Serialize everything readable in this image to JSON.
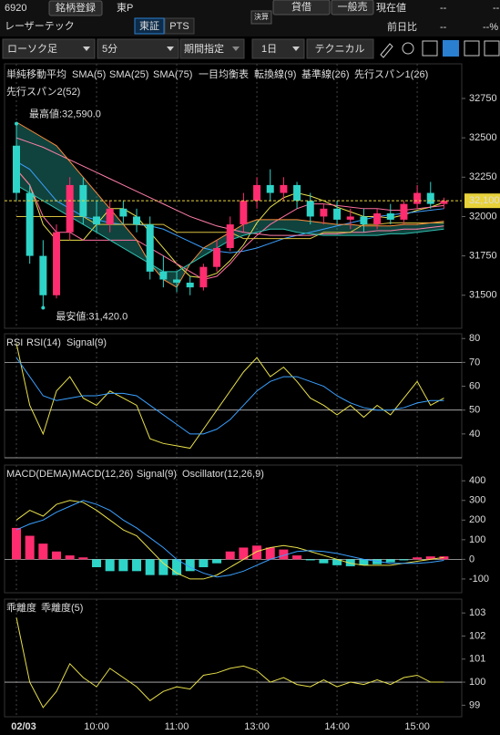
{
  "header": {
    "code": "6920",
    "register": "銘柄登録",
    "market": "東P",
    "lend": "貸借",
    "general_sell": "一般売",
    "price_label": "現在値",
    "price": "--",
    "price_extra": "--",
    "name": "レーザーテック",
    "exchange": "東証",
    "pts": "PTS",
    "earnings": "決算",
    "change_label": "前日比",
    "change": "--",
    "change_pct": "--%"
  },
  "toolbar": {
    "chart_kind": "ローソク足",
    "interval": "5分",
    "period": "期間指定",
    "span": "1日",
    "technical": "テクニカル"
  },
  "chart_data": [
    {
      "type": "candlestick",
      "groups": [
        "単純移動平均",
        "一目均衡表"
      ],
      "open": [
        32450,
        32150,
        31750,
        31500,
        31900,
        32200,
        32000,
        31950,
        32050,
        32000,
        31950,
        31650,
        31600,
        31580,
        31550,
        31680,
        31800,
        31950,
        32100,
        32200,
        32150,
        32200,
        32100,
        32000,
        32050,
        31980,
        32000,
        31950,
        32020,
        31980,
        32080,
        32150,
        32080
      ],
      "high": [
        32590,
        32200,
        31850,
        31950,
        32250,
        32250,
        32100,
        32100,
        32100,
        32050,
        32000,
        31750,
        31650,
        31620,
        31700,
        31850,
        32000,
        32150,
        32250,
        32300,
        32250,
        32220,
        32150,
        32080,
        32100,
        32050,
        32050,
        32050,
        32080,
        32100,
        32200,
        32220,
        32120
      ],
      "low": [
        32100,
        31700,
        31420,
        31480,
        31850,
        31950,
        31900,
        31900,
        31950,
        31900,
        31600,
        31550,
        31520,
        31500,
        31530,
        31650,
        31780,
        31900,
        32050,
        32100,
        32100,
        32050,
        31950,
        31950,
        31950,
        31920,
        31900,
        31920,
        31950,
        31950,
        32050,
        32050,
        32050
      ],
      "close": [
        32150,
        31750,
        31500,
        31900,
        32200,
        32000,
        31950,
        32050,
        32000,
        31950,
        31650,
        31600,
        31580,
        31550,
        31680,
        31800,
        31950,
        32100,
        32200,
        32150,
        32200,
        32100,
        32000,
        32050,
        31980,
        32000,
        31950,
        32020,
        31980,
        32080,
        32150,
        32080,
        32100
      ],
      "up_color": "#ff2d6f",
      "down_color": "#2fd4c8",
      "series": [
        {
          "name": "SMA(5)",
          "color": "#e8e04a",
          "values": [
            32300,
            32200,
            31950,
            31850,
            31850,
            31850,
            31950,
            32050,
            32050,
            32000,
            31900,
            31800,
            31700,
            31620,
            31610,
            31640,
            31720,
            31820,
            31960,
            32060,
            32120,
            32150,
            32130,
            32100,
            32060,
            32030,
            32000,
            32000,
            31990,
            32010,
            32040,
            32060,
            32090
          ]
        },
        {
          "name": "SMA(25)",
          "color": "#3aa0ff",
          "values": [
            32350,
            32300,
            32200,
            32100,
            32050,
            32000,
            31980,
            31960,
            31950,
            31950,
            31940,
            31920,
            31880,
            31840,
            31800,
            31780,
            31770,
            31780,
            31800,
            31830,
            31860,
            31880,
            31900,
            31920,
            31940,
            31960,
            31980,
            32000,
            32010,
            32020,
            32030,
            32040,
            32050
          ]
        },
        {
          "name": "SMA(75)",
          "color": "#ff7fa8",
          "values": [
            32500,
            32470,
            32440,
            32400,
            32360,
            32320,
            32280,
            32240,
            32200,
            32160,
            32120,
            32080,
            32040,
            32000,
            31970,
            31940,
            31920,
            31900,
            31890,
            31880,
            31880,
            31880,
            31880,
            31890,
            31890,
            31900,
            31900,
            31910,
            31910,
            31920,
            31920,
            31930,
            31940
          ]
        },
        {
          "name": "転換線(9)",
          "color": "#ff6fa0",
          "values": [
            32300,
            32200,
            32000,
            31900,
            31900,
            31850,
            31850,
            31850,
            31850,
            31850,
            31800,
            31750,
            31700,
            31650,
            31600,
            31620,
            31700,
            31800,
            31880,
            31950,
            32000,
            32050,
            32080,
            32080,
            32070,
            32060,
            32050,
            32050,
            32040,
            32040,
            32050,
            32060,
            32070
          ]
        },
        {
          "name": "基準線(26)",
          "color": "#d8c040",
          "values": [
            32000,
            32000,
            32000,
            32000,
            32000,
            32000,
            31950,
            31950,
            31950,
            31950,
            31950,
            31950,
            31900,
            31900,
            31900,
            31900,
            31900,
            31860,
            31860,
            31860,
            31860,
            31860,
            31860,
            31900,
            31900,
            31900,
            31950,
            31950,
            31960,
            31960,
            31960,
            31960,
            31960
          ]
        },
        {
          "name": "先行スパン1(26)",
          "color": "#ff8c3a",
          "values": [
            32600,
            32550,
            32500,
            32450,
            32350,
            32250,
            32150,
            32050,
            31950,
            31850,
            31700,
            31600,
            31550,
            31700,
            31800,
            31850,
            31900,
            31950,
            31980,
            31980,
            31980,
            31980,
            31970,
            31960,
            31950,
            31950,
            31940,
            31940,
            31940,
            31950,
            31950,
            31960,
            31970
          ]
        },
        {
          "name": "先行スパン2(52)",
          "color": "#2fbfb0",
          "values": [
            32200,
            32150,
            32100,
            32050,
            32000,
            31950,
            31900,
            31850,
            31800,
            31750,
            31700,
            31650,
            31650,
            31700,
            31750,
            31800,
            31850,
            31880,
            31900,
            31920,
            31920,
            31900,
            31890,
            31880,
            31880,
            31880,
            31880,
            31880,
            31890,
            31890,
            31900,
            31910,
            31920
          ]
        }
      ],
      "cloud_color": "#2fbfb0",
      "annotations": [
        {
          "label": "最高値:32,590.0",
          "value": 32590,
          "x": 0
        },
        {
          "label": "最安値:31,420.0",
          "value": 31420,
          "x": 2
        }
      ],
      "current": {
        "label": "32,100",
        "value": 32100,
        "color": "#e8d23a"
      },
      "ylim": [
        31290,
        32970
      ],
      "yticks": [
        31500,
        31750,
        32000,
        32250,
        32500,
        32750
      ]
    },
    {
      "type": "line",
      "title": "RSI",
      "series": [
        {
          "name": "RSI(14)",
          "color": "#e8e04a",
          "values": [
            78,
            52,
            40,
            58,
            64,
            55,
            52,
            58,
            55,
            52,
            38,
            36,
            35,
            34,
            42,
            50,
            58,
            66,
            72,
            64,
            68,
            62,
            55,
            52,
            48,
            52,
            47,
            52,
            48,
            55,
            62,
            52,
            55
          ]
        },
        {
          "name": "Signal(9)",
          "color": "#3aa0ff",
          "values": [
            72,
            64,
            56,
            54,
            55,
            56,
            56,
            57,
            57,
            56,
            52,
            48,
            44,
            40,
            40,
            42,
            46,
            52,
            58,
            62,
            64,
            64,
            62,
            60,
            56,
            53,
            51,
            50,
            50,
            51,
            53,
            54,
            54
          ]
        }
      ],
      "reference_lines": [
        30,
        50,
        70
      ],
      "ylim": [
        30,
        82
      ],
      "yticks": [
        40,
        50,
        60,
        70,
        80
      ]
    },
    {
      "type": "line",
      "title": "MACD(DEMA)",
      "series": [
        {
          "name": "MACD(12,26)",
          "color": "#e8e04a",
          "values": [
            200,
            250,
            220,
            280,
            300,
            290,
            250,
            200,
            150,
            120,
            50,
            -20,
            -70,
            -100,
            -100,
            -80,
            -40,
            0,
            40,
            60,
            70,
            60,
            40,
            20,
            0,
            -20,
            -30,
            -30,
            -30,
            -20,
            -10,
            0,
            10
          ]
        },
        {
          "name": "Signal(9)",
          "color": "#3aa0ff",
          "values": [
            150,
            180,
            200,
            240,
            270,
            300,
            280,
            250,
            200,
            160,
            110,
            60,
            0,
            -40,
            -70,
            -90,
            -80,
            -60,
            -30,
            0,
            20,
            40,
            45,
            40,
            30,
            15,
            0,
            -10,
            -20,
            -20,
            -20,
            -15,
            -5
          ]
        },
        {
          "name": "Oscillator(12,26,9)",
          "color": "#ff2d6f",
          "negative_color": "#2fd4c8",
          "style": "bar",
          "values": [
            160,
            120,
            80,
            40,
            20,
            10,
            -40,
            -60,
            -60,
            -60,
            -80,
            -80,
            -80,
            -60,
            -40,
            -20,
            40,
            60,
            70,
            60,
            50,
            20,
            -5,
            -20,
            -30,
            -35,
            -30,
            -25,
            -15,
            -5,
            10,
            15,
            15
          ]
        }
      ],
      "reference_lines": [
        0
      ],
      "ylim": [
        -170,
        480
      ],
      "yticks": [
        -100,
        0,
        100,
        200,
        300,
        400
      ]
    },
    {
      "type": "line",
      "title": "乖離度",
      "series": [
        {
          "name": "乖離度(5)",
          "color": "#e8e04a",
          "values": [
            102.8,
            100,
            98.9,
            99.6,
            100.8,
            100.2,
            99.8,
            100.6,
            100.2,
            99.8,
            99.2,
            99.6,
            99.8,
            99.7,
            100.3,
            100.4,
            100.6,
            100.7,
            100.5,
            100.0,
            100.2,
            99.9,
            99.8,
            100.1,
            99.8,
            100.0,
            99.9,
            100.1,
            99.9,
            100.2,
            100.3,
            100.0,
            100.0
          ]
        }
      ],
      "reference_lines": [
        100
      ],
      "ylim": [
        98.5,
        103.6
      ],
      "yticks": [
        99,
        100,
        101,
        102,
        103
      ],
      "xticks": [
        {
          "value": 0,
          "label": "02/03"
        },
        {
          "value": 6,
          "label": "10:00"
        },
        {
          "value": 12,
          "label": "11:00"
        },
        {
          "value": 18,
          "label": "13:00"
        },
        {
          "value": 24,
          "label": "14:00"
        },
        {
          "value": 30,
          "label": "15:00"
        }
      ]
    }
  ]
}
